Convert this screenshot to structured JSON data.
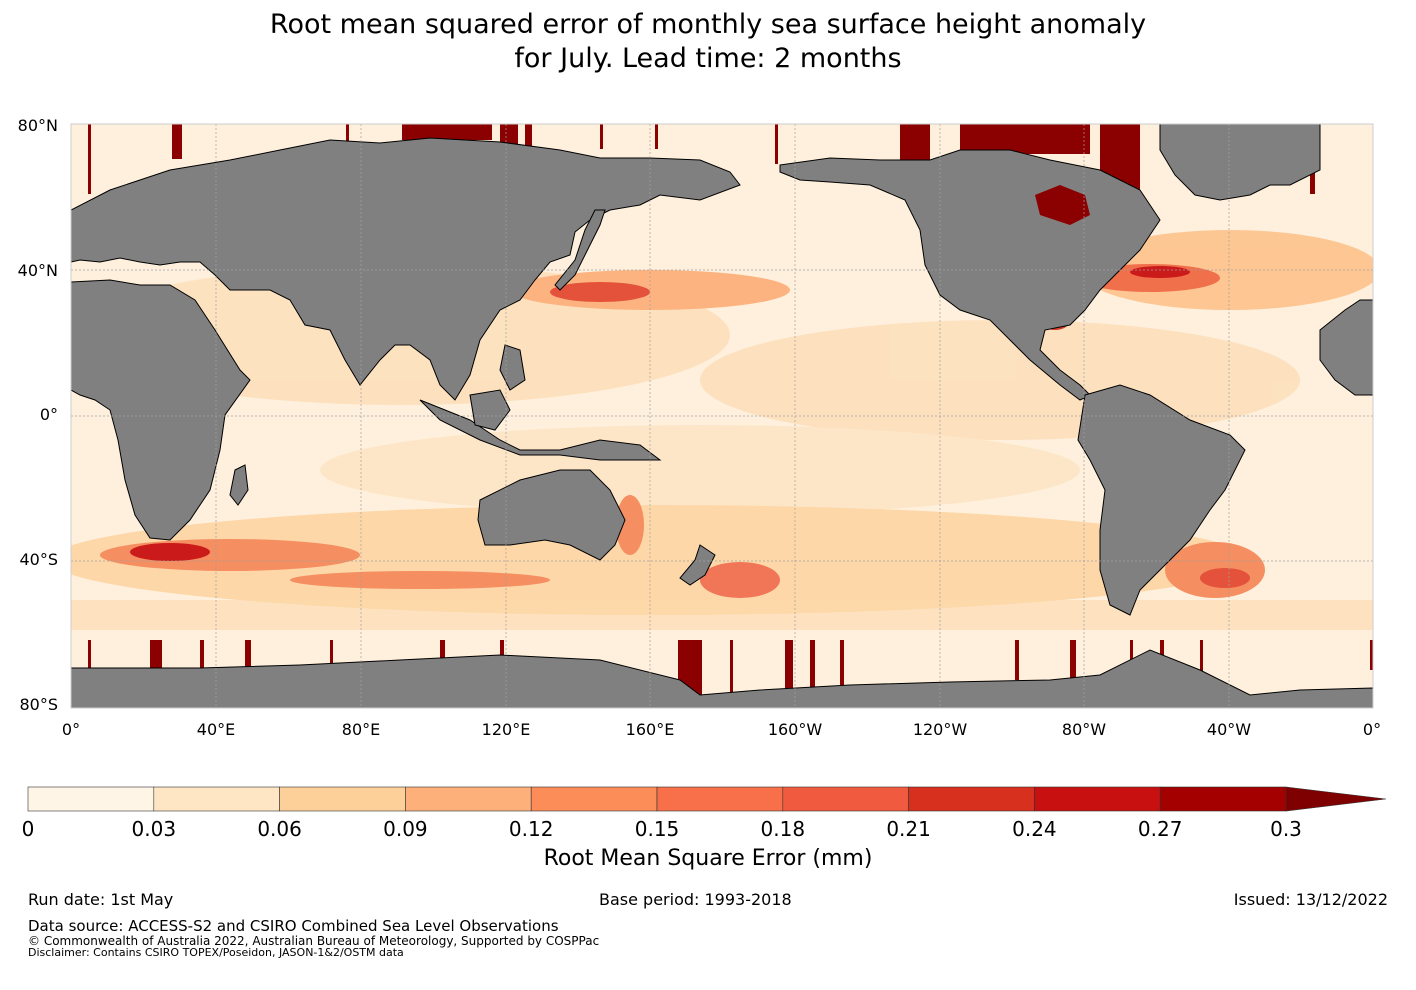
{
  "title": {
    "line1": "Root mean squared error of monthly sea surface height anomaly",
    "line2": "for July. Lead time: 2 months"
  },
  "map": {
    "lat_labels": [
      "80°N",
      "40°N",
      "0°",
      "40°S",
      "80°S"
    ],
    "lon_labels": [
      "0°",
      "40°E",
      "80°E",
      "120°E",
      "160°E",
      "160°W",
      "120°W",
      "80°W",
      "40°W",
      "0°"
    ],
    "colors": {
      "land": "#808080",
      "ocean_base": "#fef0dc",
      "grid": "#a0a0a0"
    }
  },
  "colorbar": {
    "ticks": [
      "0",
      "0.03",
      "0.06",
      "0.09",
      "0.12",
      "0.15",
      "0.18",
      "0.21",
      "0.24",
      "0.27",
      "0.3"
    ],
    "colors": [
      "#fff5e6",
      "#fee6c4",
      "#fdd09a",
      "#fdb07a",
      "#fc8d59",
      "#f7704a",
      "#f05a3e",
      "#d7301f",
      "#c81010",
      "#a50000",
      "#7f0000"
    ],
    "label": "Root Mean Square Error (mm)",
    "extend": "max"
  },
  "footer": {
    "run_date": "Run date: 1st May",
    "base_period": "Base period: 1993-2018",
    "issued": "Issued: 13/12/2022",
    "data_source": "Data source: ACCESS-S2 and CSIRO Combined Sea Level Observations",
    "copyright": "© Commonwealth of Australia 2022, Australian Bureau of Meteorology, Supported by COSPPac",
    "disclaimer": "Disclaimer: Contains CSIRO TOPEX/Poseidon, JASON-1&2/OSTM data"
  }
}
